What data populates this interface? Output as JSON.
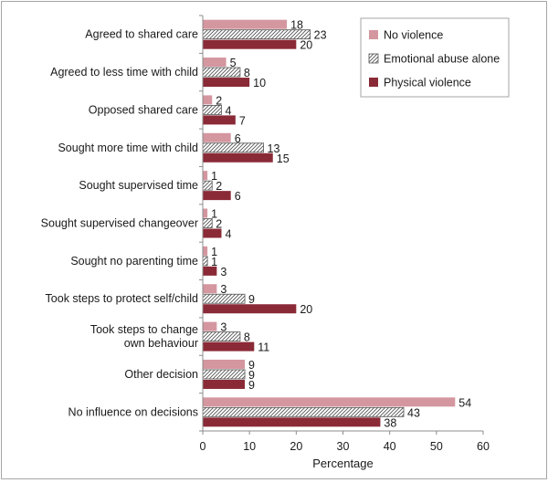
{
  "chart_data": {
    "type": "bar",
    "orientation": "horizontal",
    "categories": [
      "Agreed to shared care",
      "Agreed to less time with child",
      "Opposed shared care",
      "Sought more time with child",
      "Sought supervised time",
      "Sought supervised changeover",
      "Sought no parenting time",
      "Took steps to protect self/child",
      "Took steps to change own behaviour",
      "Other decision",
      "No influence on decisions"
    ],
    "category_lines": [
      [
        "Agreed to shared care"
      ],
      [
        "Agreed to less time with child"
      ],
      [
        "Opposed shared care"
      ],
      [
        "Sought more time with child"
      ],
      [
        "Sought supervised time"
      ],
      [
        "Sought supervised changeover"
      ],
      [
        "Sought no parenting time"
      ],
      [
        "Took steps to protect self/child"
      ],
      [
        "Took steps to change",
        "own behaviour"
      ],
      [
        "Other decision"
      ],
      [
        "No influence on decisions"
      ]
    ],
    "series": [
      {
        "name": "No violence",
        "color": "#d4969f",
        "pattern": "solid",
        "values": [
          18,
          5,
          2,
          6,
          1,
          1,
          1,
          3,
          3,
          9,
          54
        ]
      },
      {
        "name": "Emotional abuse alone",
        "color": "#ffffff",
        "pattern": "diagonal-hatch",
        "values": [
          23,
          8,
          4,
          13,
          2,
          2,
          1,
          9,
          8,
          9,
          43
        ]
      },
      {
        "name": "Physical violence",
        "color": "#8b2a37",
        "pattern": "solid",
        "values": [
          20,
          10,
          7,
          15,
          6,
          4,
          3,
          20,
          11,
          9,
          38
        ]
      }
    ],
    "xlabel": "Percentage",
    "ylabel": "",
    "xlim": [
      0,
      60
    ],
    "xticks": [
      0,
      10,
      20,
      30,
      40,
      50,
      60
    ],
    "grid": false,
    "legend_position": "top-right",
    "show_data_labels": true
  }
}
